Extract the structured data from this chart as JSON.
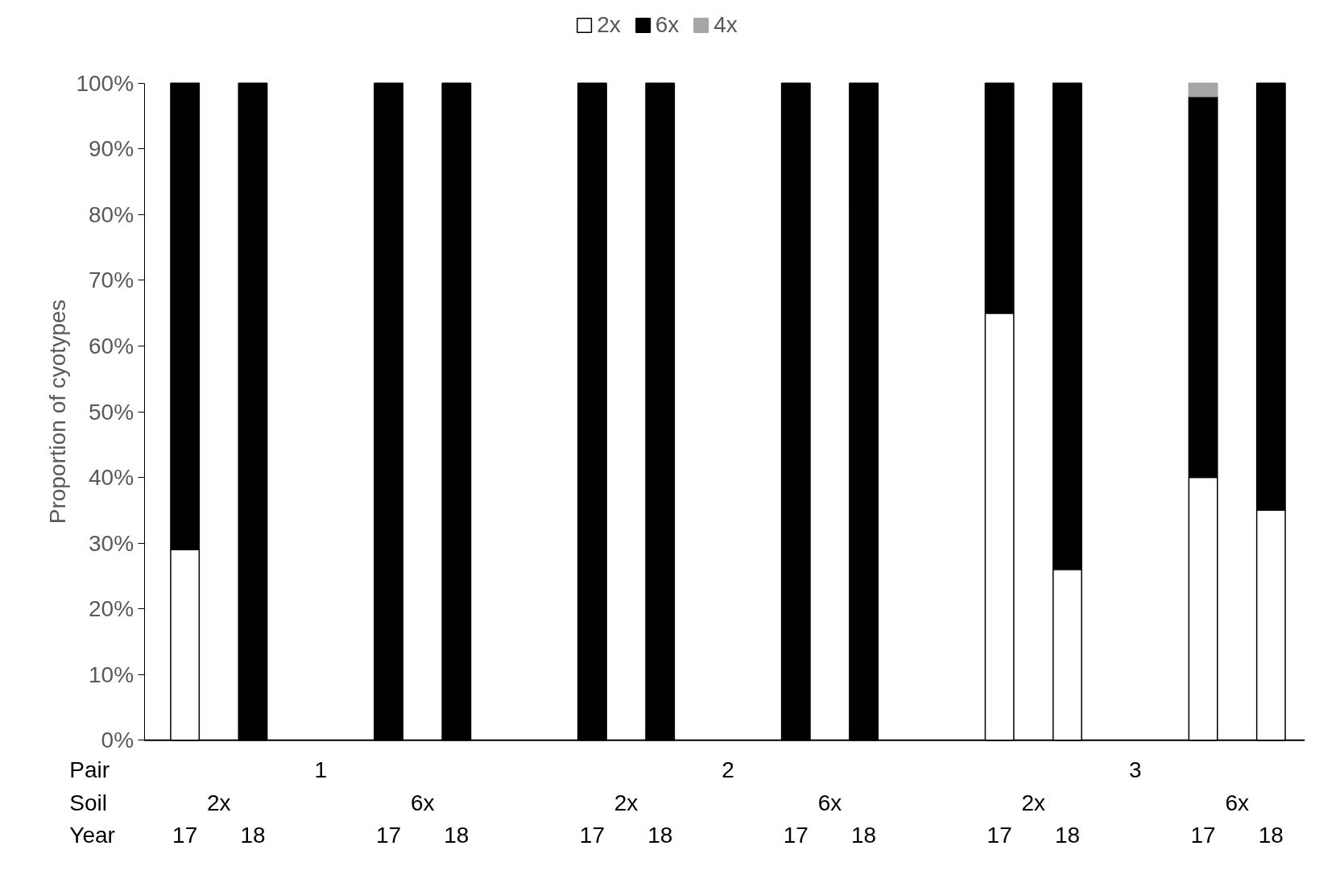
{
  "chart_data": {
    "type": "bar",
    "stacked": true,
    "ylabel": "Proportion of cyotypes",
    "categories": [
      "17",
      "18",
      null,
      "17",
      "18",
      null,
      "17",
      "18",
      null,
      "17",
      "18",
      null,
      "17",
      "18",
      null,
      "17",
      "18"
    ],
    "series": [
      {
        "name": "2x",
        "color": "#ffffff",
        "values": [
          29,
          0,
          null,
          0,
          0,
          null,
          0,
          0,
          null,
          0,
          0,
          null,
          65,
          26,
          null,
          40,
          35
        ]
      },
      {
        "name": "6x",
        "color": "#000000",
        "values": [
          71,
          100,
          null,
          100,
          100,
          null,
          100,
          100,
          null,
          100,
          100,
          null,
          35,
          74,
          null,
          58,
          65
        ]
      },
      {
        "name": "4x",
        "color": "#a6a6a6",
        "values": [
          0,
          0,
          null,
          0,
          0,
          null,
          0,
          0,
          null,
          0,
          0,
          null,
          0,
          0,
          null,
          2,
          0
        ]
      }
    ],
    "ylim": [
      0,
      100
    ],
    "yticks": [
      {
        "value": 0,
        "label": "0%"
      },
      {
        "value": 10,
        "label": "10%"
      },
      {
        "value": 20,
        "label": "20%"
      },
      {
        "value": 30,
        "label": "30%"
      },
      {
        "value": 40,
        "label": "40%"
      },
      {
        "value": 50,
        "label": "50%"
      },
      {
        "value": 60,
        "label": "60%"
      },
      {
        "value": 70,
        "label": "70%"
      },
      {
        "value": 80,
        "label": "80%"
      },
      {
        "value": 90,
        "label": "90%"
      },
      {
        "value": 100,
        "label": "100%"
      }
    ],
    "grid": false,
    "legend": "top",
    "annotations": [
      "Pair",
      "Soil",
      "Year",
      "1",
      "2",
      "3",
      "2x",
      "6x",
      "2x",
      "6x",
      "2x",
      "6x"
    ]
  }
}
